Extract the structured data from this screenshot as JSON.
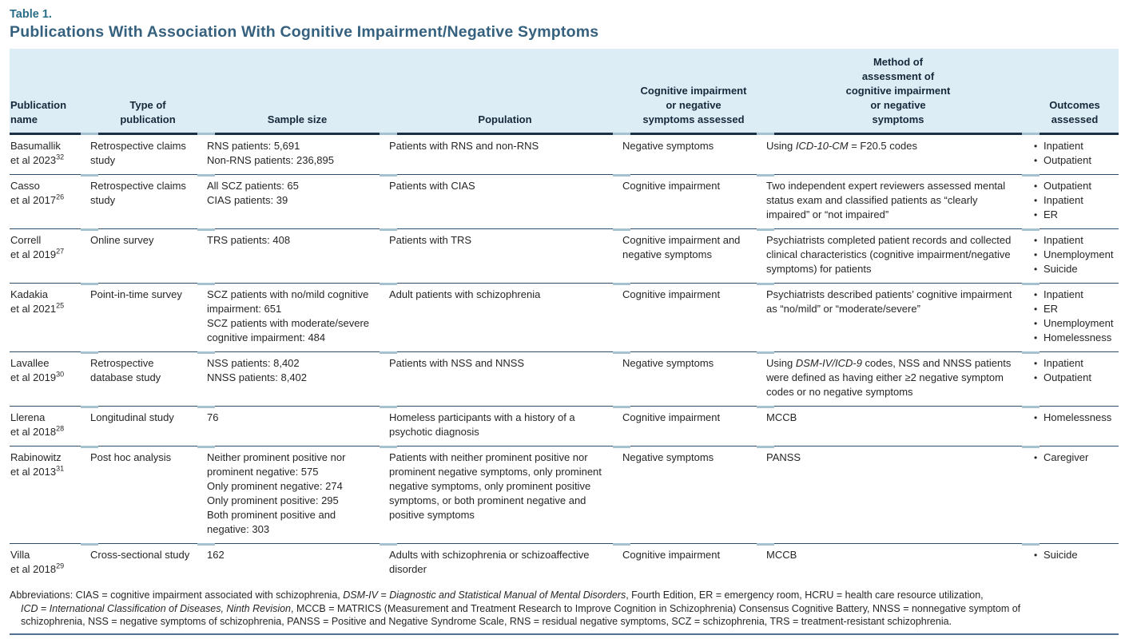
{
  "table_label": "Table 1.",
  "title": "Publications With Association With Cognitive Impairment/Negative Symptoms",
  "colors": {
    "header_band": "#dcedf6",
    "title_text": "#35617e",
    "table_label_text": "#2a6d87",
    "header_rule": "#1c3145",
    "row_divider": "#2c4e6b",
    "divider_tick": "#a6c2d1",
    "bottom_rule": "#527492"
  },
  "table": {
    "headers": [
      "Publication\nname",
      "Type of\npublication",
      "Sample size",
      "Population",
      "Cognitive impairment\nor negative\nsymptoms assessed",
      "Method of\nassessment of\ncognitive impairment\nor negative\nsymptoms",
      "Outcomes\nassessed"
    ],
    "rows": [
      {
        "publication": {
          "name": "Basumallik",
          "etal": "et al 2023",
          "ref": "32"
        },
        "type": "Retrospective claims study",
        "sample": "RNS patients: 5,691\nNon-RNS patients: 236,895",
        "population": "Patients with RNS and non-RNS",
        "symptoms": "Negative symptoms",
        "method": [
          {
            "text": "Using "
          },
          {
            "text": "ICD-10-CM",
            "italic": true
          },
          {
            "text": " = F20.5 codes"
          }
        ],
        "outcomes": [
          "Inpatient",
          "Outpatient"
        ]
      },
      {
        "publication": {
          "name": "Casso",
          "etal": "et al 2017",
          "ref": "26"
        },
        "type": "Retrospective claims study",
        "sample": "All SCZ patients: 65\nCIAS patients: 39",
        "population": "Patients with CIAS",
        "symptoms": "Cognitive impairment",
        "method": [
          {
            "text": "Two independent expert reviewers assessed mental status exam and classified patients as “clearly impaired” or “not impaired”"
          }
        ],
        "outcomes": [
          "Outpatient",
          "Inpatient",
          "ER"
        ]
      },
      {
        "publication": {
          "name": "Correll",
          "etal": "et al 2019",
          "ref": "27"
        },
        "type": "Online survey",
        "sample": "TRS patients: 408",
        "population": "Patients with TRS",
        "symptoms": "Cognitive impairment and negative symptoms",
        "method": [
          {
            "text": "Psychiatrists completed patient records and collected clinical characteristics (cognitive impairment/negative symptoms) for patients"
          }
        ],
        "outcomes": [
          "Inpatient",
          "Unemployment",
          "Suicide"
        ]
      },
      {
        "publication": {
          "name": "Kadakia",
          "etal": "et al 2021",
          "ref": "25"
        },
        "type": "Point-in-time survey",
        "sample": "SCZ patients with no/mild cognitive impairment: 651\nSCZ patients with moderate/severe cognitive impairment: 484",
        "population": "Adult patients with schizophrenia",
        "symptoms": "Cognitive impairment",
        "method": [
          {
            "text": "Psychiatrists described patients’ cognitive impairment as “no/mild” or “moderate/severe”"
          }
        ],
        "outcomes": [
          "Inpatient",
          "ER",
          "Unemployment",
          "Homelessness"
        ]
      },
      {
        "publication": {
          "name": "Lavallee",
          "etal": "et al 2019",
          "ref": "30"
        },
        "type": "Retrospective database study",
        "sample": "NSS patients: 8,402\nNNSS patients: 8,402",
        "population": "Patients with NSS and NNSS",
        "symptoms": "Negative symptoms",
        "method": [
          {
            "text": "Using "
          },
          {
            "text": "DSM-IV/ICD-9",
            "italic": true
          },
          {
            "text": " codes, NSS and NNSS patients were defined as having either ≥2 negative symptom codes or no negative symptoms"
          }
        ],
        "outcomes": [
          "Inpatient",
          "Outpatient"
        ]
      },
      {
        "publication": {
          "name": "Llerena",
          "etal": "et al 2018",
          "ref": "28"
        },
        "type": "Longitudinal study",
        "sample": "76",
        "population": "Homeless participants with a history of a psychotic diagnosis",
        "symptoms": "Cognitive impairment",
        "method": [
          {
            "text": "MCCB"
          }
        ],
        "outcomes": [
          "Homelessness"
        ]
      },
      {
        "publication": {
          "name": "Rabinowitz",
          "etal": "et al 2013",
          "ref": "31"
        },
        "type": "Post hoc analysis",
        "sample": "Neither prominent positive nor prominent negative: 575\nOnly prominent negative: 274\nOnly prominent positive: 295\nBoth prominent positive and negative: 303",
        "population": "Patients with neither prominent positive nor prominent negative symptoms, only prominent negative symptoms, only prominent positive symptoms, or both prominent negative and positive symptoms",
        "symptoms": "Negative symptoms",
        "method": [
          {
            "text": "PANSS"
          }
        ],
        "outcomes": [
          "Caregiver"
        ]
      },
      {
        "publication": {
          "name": "Villa",
          "etal": "et al 2018",
          "ref": "29"
        },
        "type": "Cross-sectional study",
        "sample": "162",
        "population": "Adults with schizophrenia or schizoaffective disorder",
        "symptoms": "Cognitive impairment",
        "method": [
          {
            "text": "MCCB"
          }
        ],
        "outcomes": [
          "Suicide"
        ]
      }
    ]
  },
  "footnote": {
    "lines": [
      {
        "indent": false,
        "segments": [
          {
            "text": "Abbreviations: CIAS = cognitive impairment associated with schizophrenia, "
          },
          {
            "text": "DSM-IV",
            "italic": true
          },
          {
            "text": " = "
          },
          {
            "text": "Diagnostic and Statistical Manual of Mental Disorders",
            "italic": true
          },
          {
            "text": ", Fourth Edition, ER = emergency room, HCRU = health care resource utilization,"
          }
        ]
      },
      {
        "indent": true,
        "segments": [
          {
            "text": "ICD",
            "italic": true
          },
          {
            "text": " = "
          },
          {
            "text": "International Classification of Diseases, Ninth Revision",
            "italic": true
          },
          {
            "text": ", MCCB = MATRICS (Measurement and Treatment Research to Improve Cognition in Schizophrenia) Consensus Cognitive Battery, NNSS = nonnegative symptom of"
          }
        ]
      },
      {
        "indent": true,
        "segments": [
          {
            "text": "schizophrenia, NSS = negative symptoms of schizophrenia, PANSS = Positive and Negative Syndrome Scale, RNS = residual negative symptoms, SCZ = schizophrenia, TRS = treatment-resistant schizophrenia."
          }
        ]
      }
    ]
  }
}
